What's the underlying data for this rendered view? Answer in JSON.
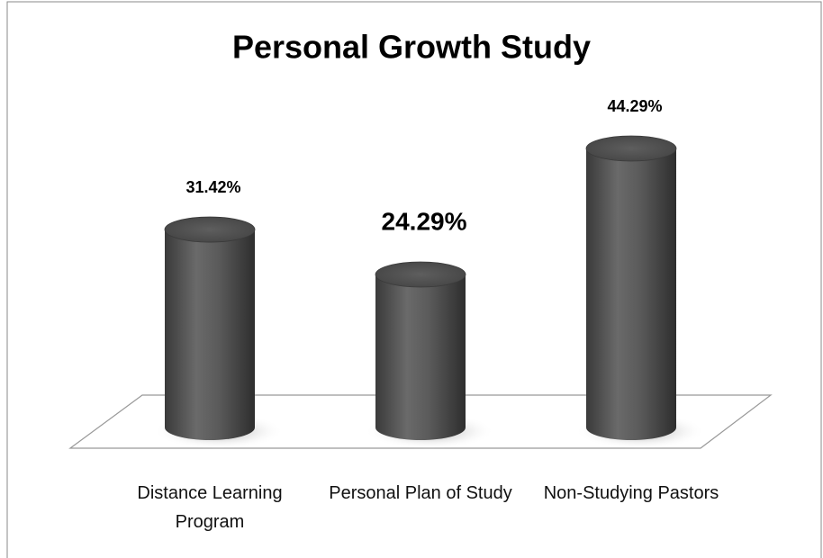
{
  "chart_data": {
    "type": "bar3d",
    "title": "Personal Growth Study",
    "categories": [
      "Distance Learning Program",
      "Personal Plan of Study",
      "Non-Studying Pastors"
    ],
    "values": [
      31.42,
      24.29,
      44.29
    ],
    "value_labels": [
      "31.42%",
      "24.29%",
      "44.29%"
    ],
    "color": "#555555"
  }
}
